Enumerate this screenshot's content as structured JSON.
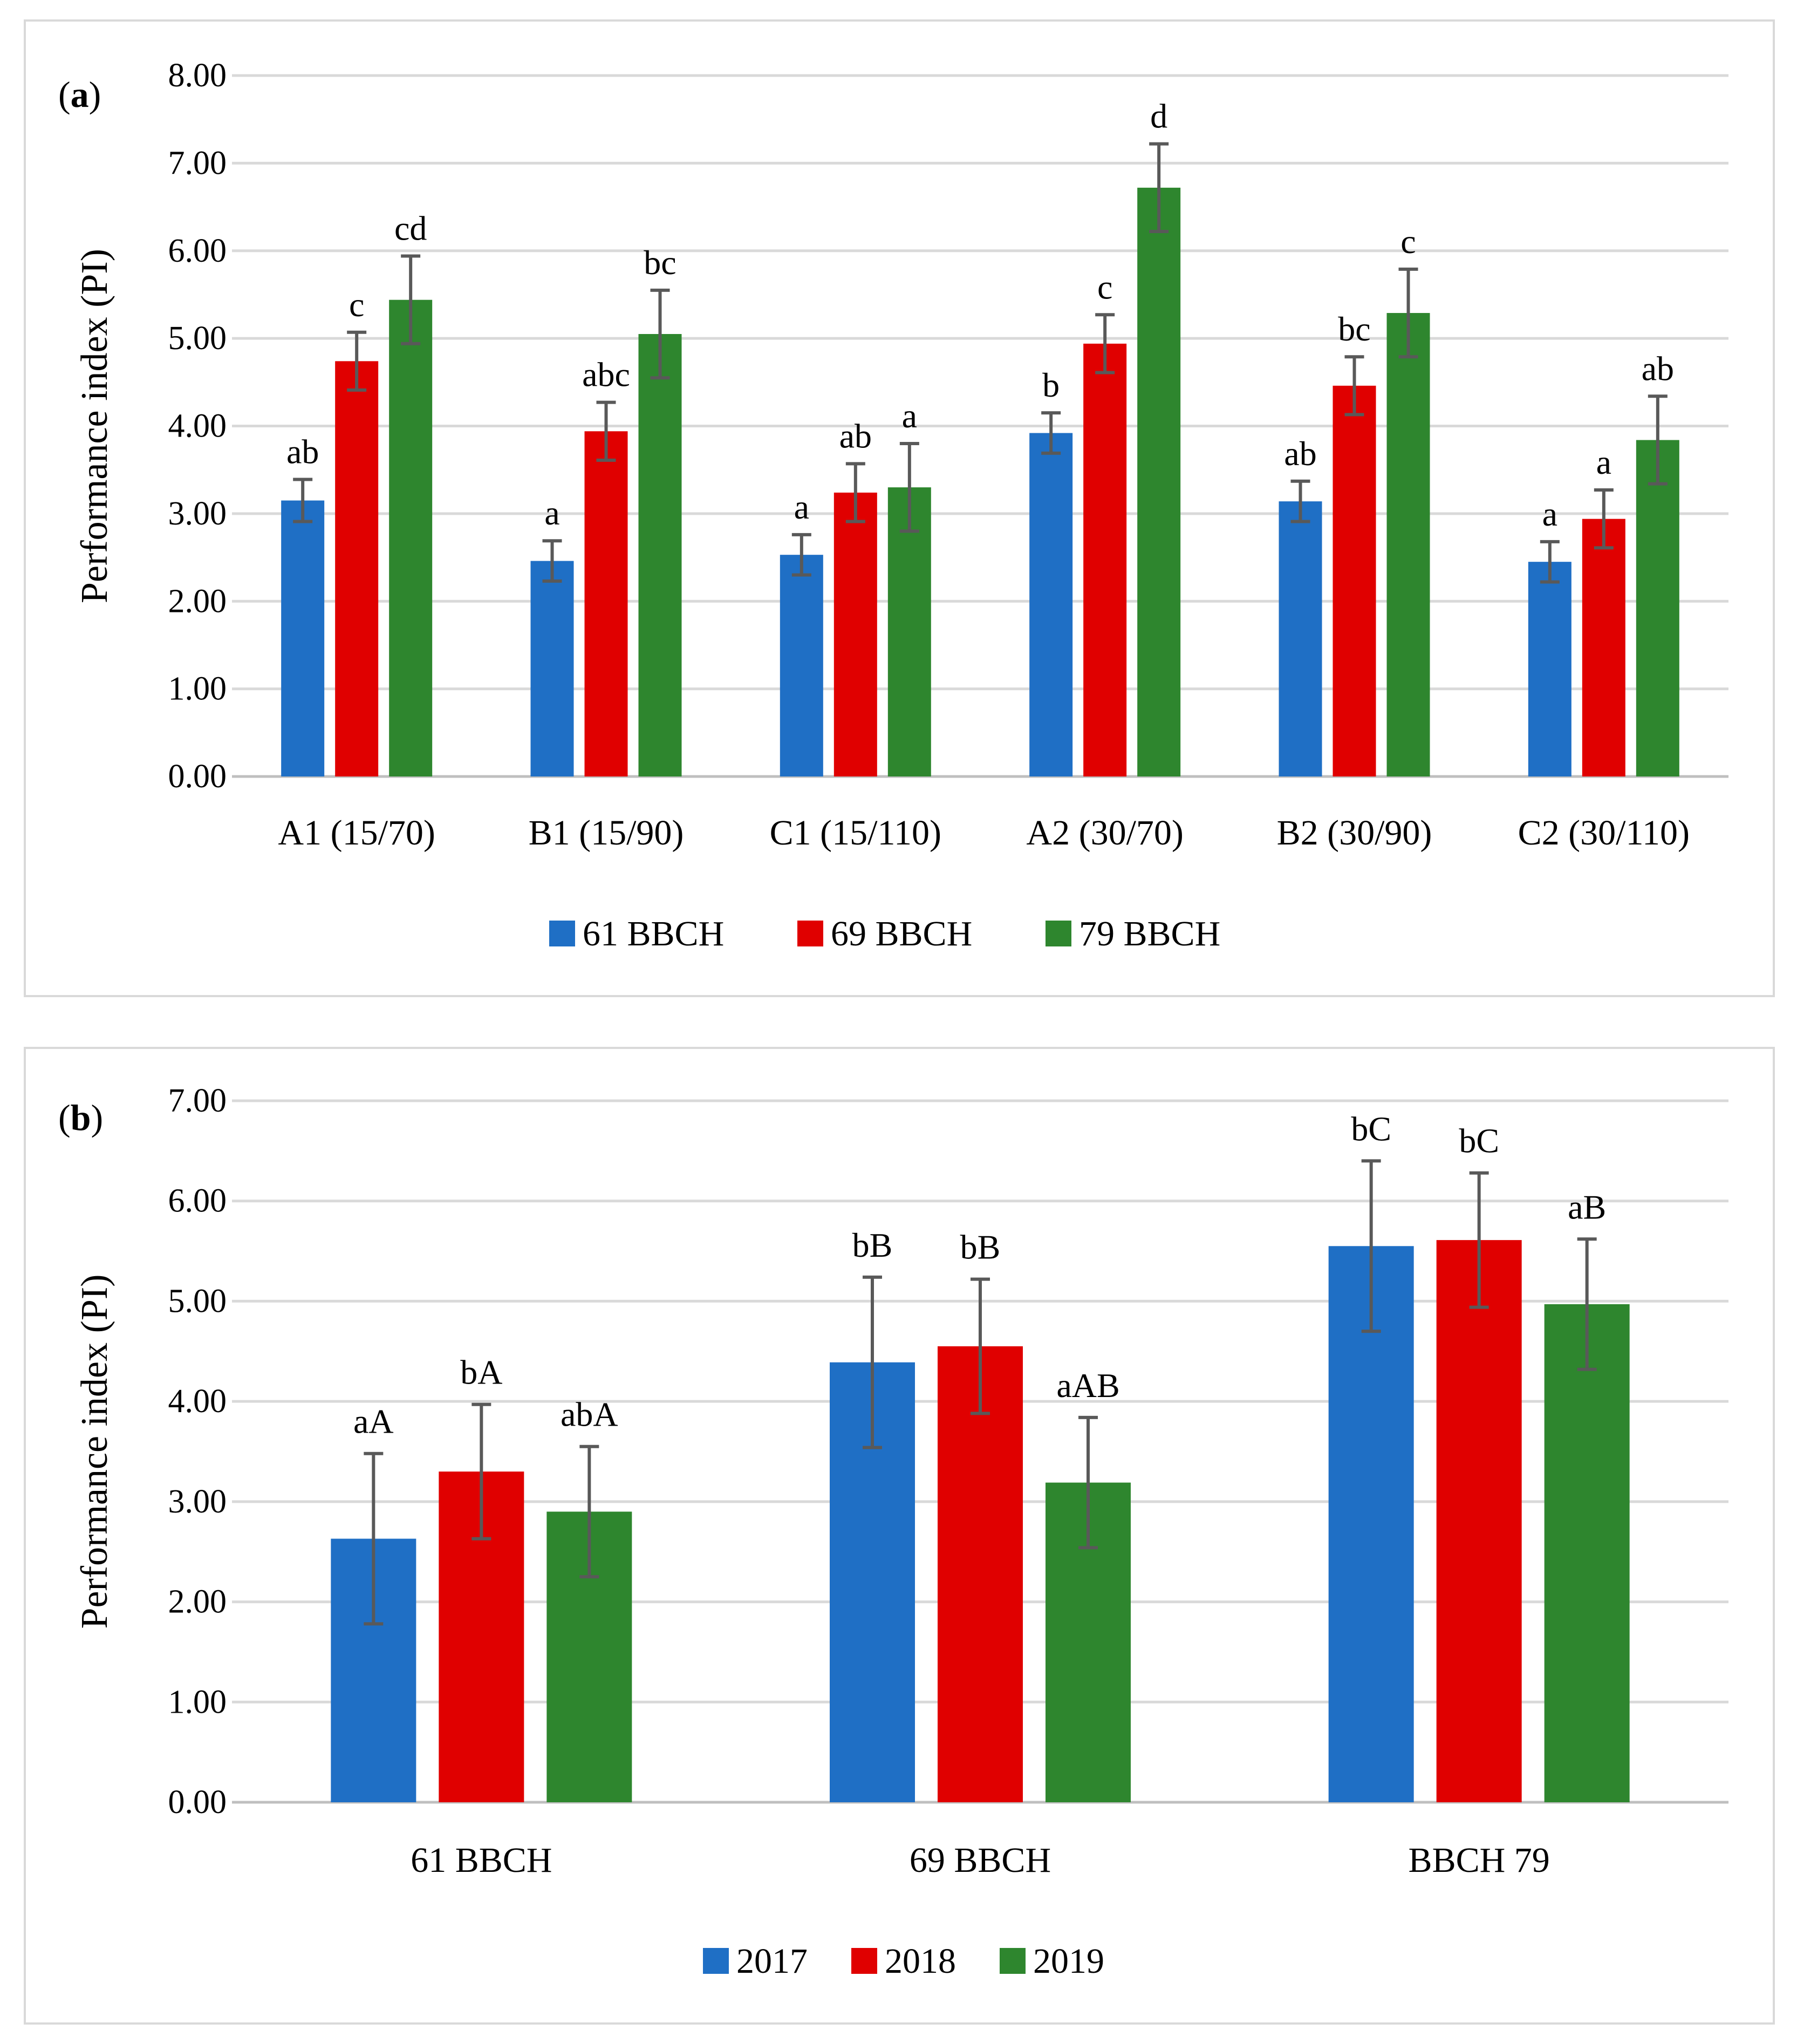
{
  "chart_data": [
    {
      "type": "bar",
      "panel_label": "a",
      "ylabel": "Performance index (PI)",
      "xlabel": "",
      "ylim": [
        0,
        8
      ],
      "ytick_labels": [
        "0.00",
        "1.00",
        "2.00",
        "3.00",
        "4.00",
        "5.00",
        "6.00",
        "7.00",
        "8.00"
      ],
      "categories": [
        "A1 (15/70)",
        "B1 (15/90)",
        "C1 (15/110)",
        "A2 (30/70)",
        "B2 (30/90)",
        "C2 (30/110)"
      ],
      "legend_position": "bottom",
      "series": [
        {
          "name": "61 BBCH",
          "color": "#1f6fc5",
          "values": [
            3.15,
            2.46,
            2.53,
            3.92,
            3.14,
            2.45
          ],
          "errors": [
            0.24,
            0.23,
            0.23,
            0.23,
            0.23,
            0.23
          ],
          "letters": [
            "ab",
            "a",
            "a",
            "b",
            "ab",
            "a"
          ]
        },
        {
          "name": "69 BBCH",
          "color": "#e00000",
          "values": [
            4.74,
            3.94,
            3.24,
            4.94,
            4.46,
            2.94
          ],
          "errors": [
            0.33,
            0.33,
            0.33,
            0.33,
            0.33,
            0.33
          ],
          "letters": [
            "c",
            "abc",
            "ab",
            "c",
            "bc",
            "a"
          ]
        },
        {
          "name": "79 BBCH",
          "color": "#2e862e",
          "values": [
            5.44,
            5.05,
            3.3,
            6.72,
            5.29,
            3.84
          ],
          "errors": [
            0.5,
            0.5,
            0.5,
            0.5,
            0.5,
            0.5
          ],
          "letters": [
            "cd",
            "bc",
            "a",
            "d",
            "c",
            "ab"
          ]
        }
      ]
    },
    {
      "type": "bar",
      "panel_label": "b",
      "ylabel": "Performance index (PI)",
      "xlabel": "",
      "ylim": [
        0,
        7
      ],
      "ytick_labels": [
        "0.00",
        "1.00",
        "2.00",
        "3.00",
        "4.00",
        "5.00",
        "6.00",
        "7.00"
      ],
      "categories": [
        "61 BBCH",
        "69 BBCH",
        "BBCH 79"
      ],
      "legend_position": "bottom",
      "series": [
        {
          "name": "2017",
          "color": "#1f6fc5",
          "values": [
            2.63,
            4.39,
            5.55
          ],
          "errors": [
            0.85,
            0.85,
            0.85
          ],
          "letters": [
            "aA",
            "bB",
            "bC"
          ]
        },
        {
          "name": "2018",
          "color": "#e00000",
          "values": [
            3.3,
            4.55,
            5.61
          ],
          "errors": [
            0.67,
            0.67,
            0.67
          ],
          "letters": [
            "bA",
            "bB",
            "bC"
          ]
        },
        {
          "name": "2019",
          "color": "#2e862e",
          "values": [
            2.9,
            3.19,
            4.97
          ],
          "errors": [
            0.65,
            0.65,
            0.65
          ],
          "letters": [
            "abA",
            "aAB",
            "aB"
          ]
        }
      ]
    }
  ]
}
